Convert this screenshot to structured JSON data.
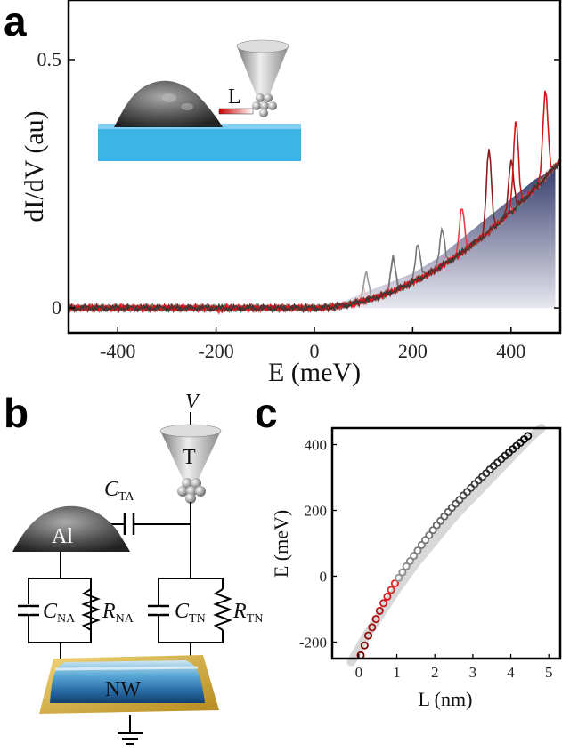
{
  "panels": {
    "a": "a",
    "b": "b",
    "c": "c"
  },
  "chart_data": [
    {
      "panel": "a",
      "type": "line",
      "xlabel": "E (meV)",
      "ylabel": "dI/dV (au)",
      "xlim": [
        -500,
        500
      ],
      "ylim": [
        -0.05,
        0.62
      ],
      "x_ticks": [
        -400,
        -200,
        0,
        200,
        400
      ],
      "y_ticks": [
        0,
        0.5
      ],
      "y_tick_labels": [
        "0",
        "0.5"
      ],
      "inset_label": "L",
      "background_fill": {
        "x": [
          0,
          50,
          100,
          150,
          200,
          250,
          300,
          350,
          400,
          450,
          490
        ],
        "y": [
          0.0,
          0.01,
          0.03,
          0.05,
          0.07,
          0.1,
          0.14,
          0.18,
          0.22,
          0.26,
          0.28
        ]
      },
      "series": [
        {
          "color": "#f2c0c0",
          "resonances": [
            [
              -120,
              -0.008
            ],
            [
              100,
              0.04
            ]
          ]
        },
        {
          "color": "#999999",
          "resonances": [
            [
              105,
              0.07
            ],
            [
              160,
              0.1
            ]
          ]
        },
        {
          "color": "#777777",
          "resonances": [
            [
              160,
              0.1
            ],
            [
              210,
              0.13
            ],
            [
              260,
              0.16
            ]
          ]
        },
        {
          "color": "#e04040",
          "resonances": [
            [
              -190,
              -0.01
            ],
            [
              300,
              0.2
            ]
          ]
        },
        {
          "color": "#8b1a1a",
          "resonances": [
            [
              355,
              0.32
            ],
            [
              400,
              0.3
            ]
          ]
        },
        {
          "color": "#d01818",
          "resonances": [
            [
              410,
              0.38
            ],
            [
              470,
              0.44
            ]
          ]
        },
        {
          "color": "#3a3a3a",
          "resonances": []
        }
      ]
    },
    {
      "panel": "b",
      "type": "diagram",
      "labels": {
        "voltage": "V",
        "tip": "T",
        "island": "Al",
        "nanowire": "NW",
        "cta_main": "C",
        "cta_sub": "TA",
        "cna_main": "C",
        "cna_sub": "NA",
        "rna_main": "R",
        "rna_sub": "NA",
        "ctn_main": "C",
        "ctn_sub": "TN",
        "rtn_main": "R",
        "rtn_sub": "TN"
      }
    },
    {
      "panel": "c",
      "type": "scatter",
      "xlabel": "L (nm)",
      "ylabel": "E (meV)",
      "xlim": [
        -0.7,
        5.3
      ],
      "ylim": [
        -250,
        450
      ],
      "x_ticks": [
        0,
        1,
        2,
        3,
        4,
        5
      ],
      "y_ticks": [
        -200,
        0,
        200,
        400
      ],
      "fit_curve": {
        "x": [
          -0.2,
          0.2,
          0.6,
          1.0,
          1.5,
          2.0,
          2.5,
          3.0,
          3.5,
          4.0,
          4.5,
          4.8
        ],
        "y": [
          -260,
          -180,
          -110,
          -40,
          40,
          110,
          180,
          240,
          300,
          360,
          420,
          450
        ]
      },
      "points": {
        "x": [
          0.05,
          0.15,
          0.25,
          0.35,
          0.45,
          0.55,
          0.65,
          0.75,
          0.85,
          0.95,
          1.05,
          1.15,
          1.25,
          1.35,
          1.45,
          1.55,
          1.65,
          1.75,
          1.85,
          1.95,
          2.05,
          2.15,
          2.25,
          2.35,
          2.45,
          2.55,
          2.65,
          2.75,
          2.85,
          2.95,
          3.05,
          3.15,
          3.25,
          3.35,
          3.45,
          3.55,
          3.65,
          3.75,
          3.85,
          3.95,
          4.05,
          4.15,
          4.25,
          4.35,
          4.45
        ],
        "y": [
          -240,
          -210,
          -180,
          -155,
          -130,
          -105,
          -82,
          -62,
          -42,
          -22,
          -5,
          12,
          30,
          46,
          62,
          78,
          95,
          110,
          125,
          140,
          155,
          168,
          182,
          195,
          208,
          220,
          232,
          245,
          256,
          268,
          280,
          291,
          302,
          313,
          324,
          335,
          345,
          356,
          366,
          376,
          386,
          396,
          406,
          416,
          426
        ]
      }
    }
  ]
}
